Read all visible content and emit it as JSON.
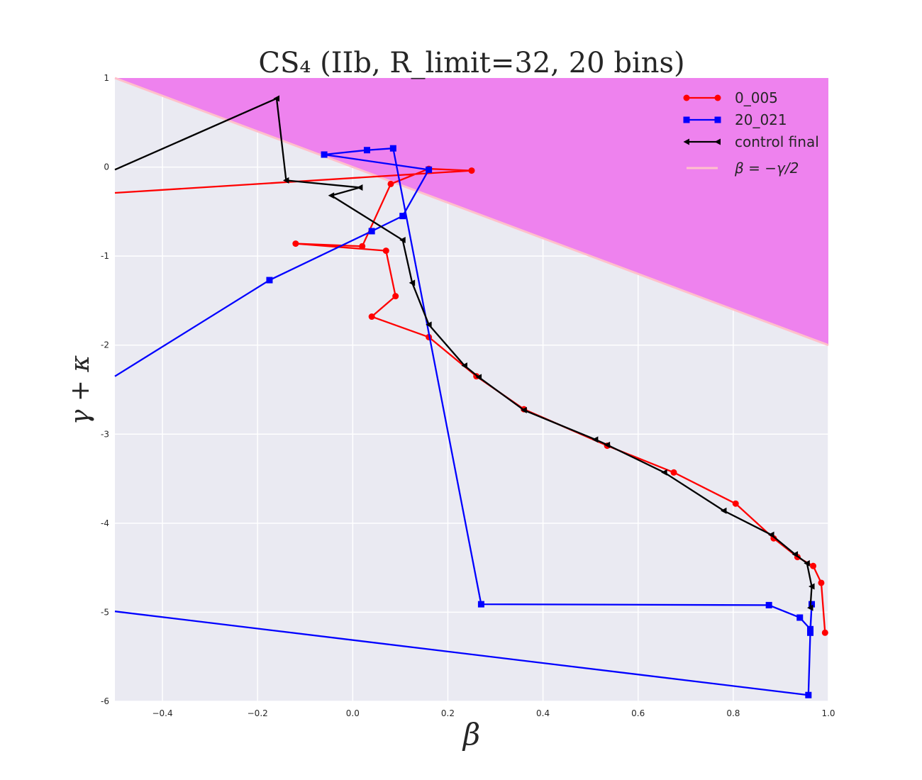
{
  "chart_data": {
    "type": "line",
    "title": "CS₄ (IIb, R_limit=32, 20 bins)",
    "xlabel": "β",
    "ylabel": "γ + κ",
    "xlim": [
      -0.5,
      1.0
    ],
    "ylim": [
      -6,
      1
    ],
    "xticks": [
      -0.4,
      -0.2,
      0.0,
      0.2,
      0.4,
      0.6,
      0.8,
      1.0
    ],
    "xtick_labels": [
      "−0.4",
      "−0.2",
      "0.0",
      "0.2",
      "0.4",
      "0.6",
      "0.8",
      "1.0"
    ],
    "yticks": [
      1,
      0,
      -1,
      -2,
      -3,
      -4,
      -5,
      -6
    ],
    "ytick_labels": [
      "1",
      "0",
      "-1",
      "-2",
      "-3",
      "-4",
      "-5",
      "-6"
    ],
    "grid": true,
    "legend_position": "top-right",
    "shaded_region": {
      "label": "β = −γ/2",
      "color": "#ee82ee",
      "boundary_color": "#ffc0cb"
    },
    "series": [
      {
        "name": "0_005",
        "color": "#ff0000",
        "marker": "circle",
        "points": [
          [
            -0.5,
            -0.29
          ],
          [
            0.25,
            -0.04
          ],
          [
            0.16,
            -0.02
          ],
          [
            0.08,
            -0.19
          ],
          [
            0.02,
            -0.89
          ],
          [
            -0.12,
            -0.86
          ],
          [
            0.07,
            -0.94
          ],
          [
            0.09,
            -1.45
          ],
          [
            0.04,
            -1.68
          ],
          [
            0.16,
            -1.91
          ],
          [
            0.26,
            -2.35
          ],
          [
            0.36,
            -2.72
          ],
          [
            0.535,
            -3.13
          ],
          [
            0.675,
            -3.43
          ],
          [
            0.805,
            -3.78
          ],
          [
            0.885,
            -4.17
          ],
          [
            0.935,
            -4.38
          ],
          [
            0.968,
            -4.48
          ],
          [
            0.985,
            -4.67
          ],
          [
            0.993,
            -5.23
          ]
        ]
      },
      {
        "name": "20_021",
        "color": "#0000ff",
        "marker": "square",
        "points": [
          [
            -0.5,
            -2.35
          ],
          [
            -0.175,
            -1.27
          ],
          [
            0.04,
            -0.72
          ],
          [
            0.105,
            -0.55
          ],
          [
            0.16,
            -0.03
          ],
          [
            -0.06,
            0.14
          ],
          [
            0.03,
            0.19
          ],
          [
            0.085,
            0.21
          ],
          [
            0.27,
            -4.91
          ],
          [
            0.875,
            -4.92
          ],
          [
            0.94,
            -5.06
          ],
          [
            0.962,
            -5.19
          ],
          [
            0.965,
            -4.91
          ],
          [
            0.962,
            -5.23
          ],
          [
            0.958,
            -5.93
          ],
          [
            -0.5,
            -4.99
          ]
        ]
      },
      {
        "name": "control final",
        "color": "#000000",
        "marker": "triangle-left",
        "points": [
          [
            -0.5,
            -0.03
          ],
          [
            -0.16,
            0.77
          ],
          [
            -0.14,
            -0.15
          ],
          [
            0.015,
            -0.23
          ],
          [
            -0.045,
            -0.32
          ],
          [
            0.105,
            -0.82
          ],
          [
            0.125,
            -1.3
          ],
          [
            0.16,
            -1.77
          ],
          [
            0.235,
            -2.23
          ],
          [
            0.265,
            -2.36
          ],
          [
            0.36,
            -2.73
          ],
          [
            0.51,
            -3.06
          ],
          [
            0.535,
            -3.12
          ],
          [
            0.655,
            -3.43
          ],
          [
            0.78,
            -3.86
          ],
          [
            0.88,
            -4.13
          ],
          [
            0.93,
            -4.35
          ],
          [
            0.955,
            -4.45
          ],
          [
            0.965,
            -4.71
          ],
          [
            0.962,
            -4.95
          ]
        ]
      }
    ]
  }
}
